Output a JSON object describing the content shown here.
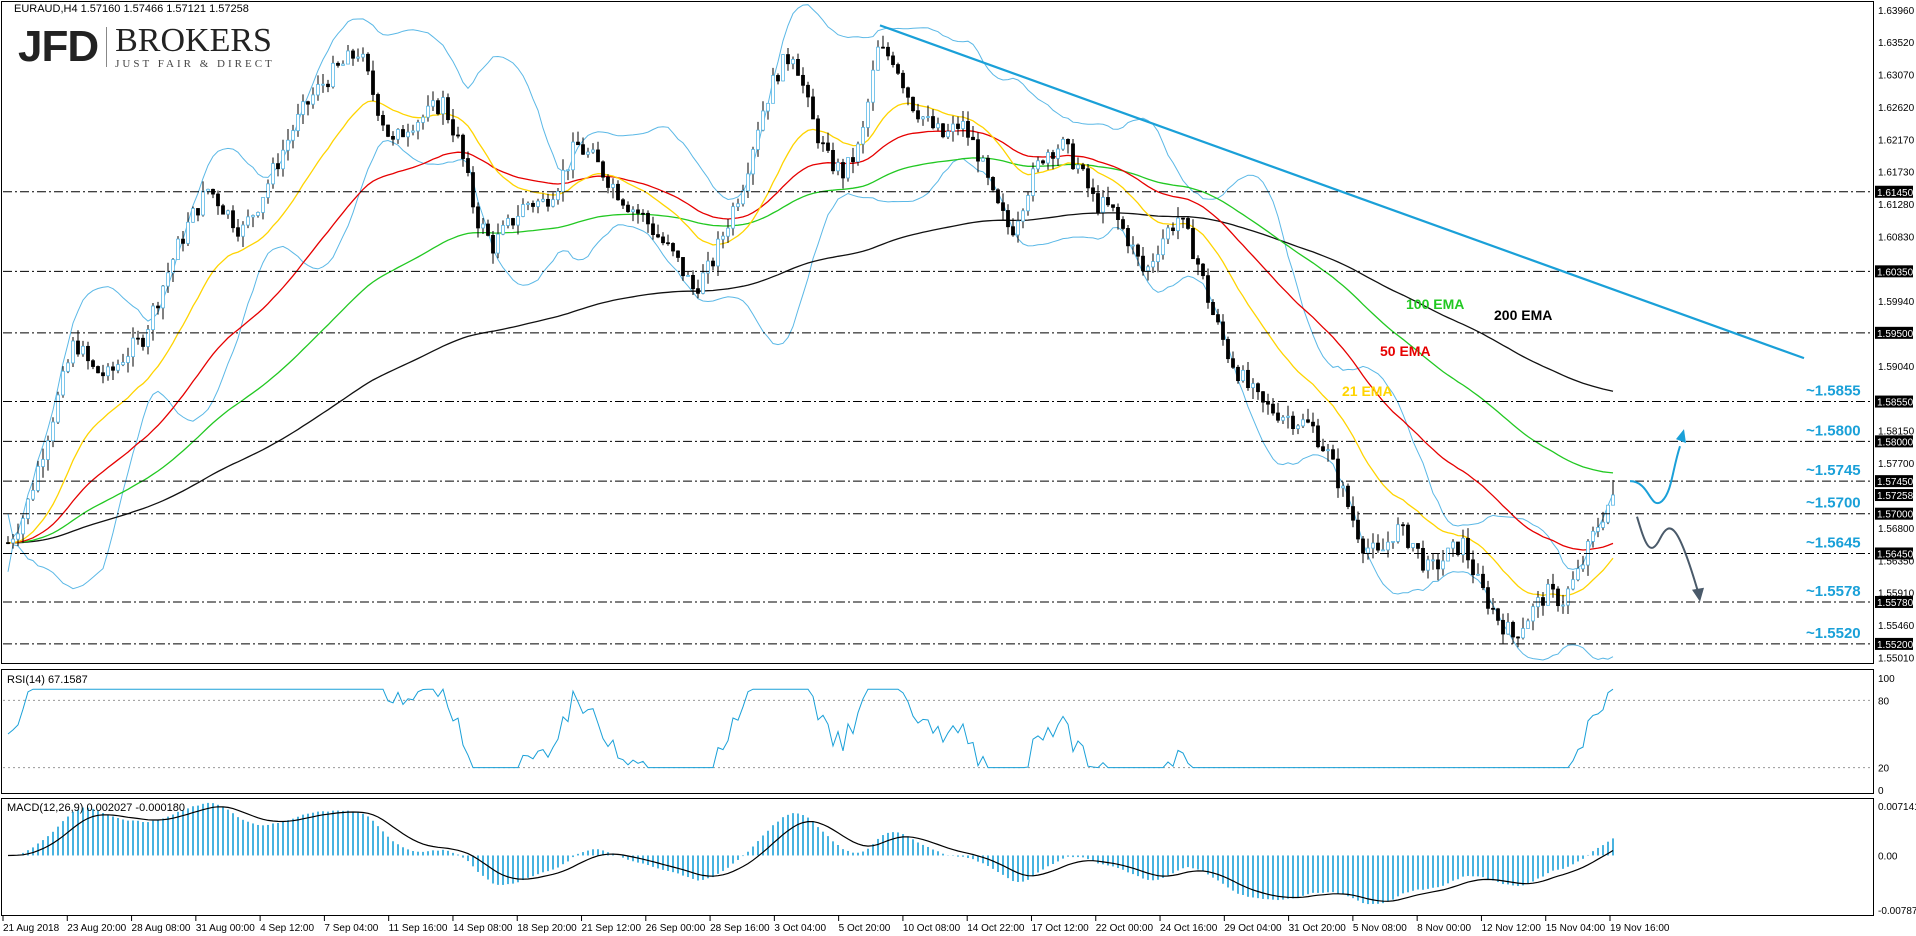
{
  "header": {
    "symbol_line": "EURAUD,H4  1.57160 1.57466 1.57121 1.57258"
  },
  "logo": {
    "mark": "JFD",
    "name": "BROKERS",
    "tagline": "JUST FAIR & DIRECT"
  },
  "panels": {
    "rsi_label": "RSI(14) 67.1587",
    "macd_label": "MACD(12,26,9) 0.002027 -0.000180"
  },
  "colors": {
    "candle": "#000000",
    "bollinger": "#5bb8e6",
    "ema21": "#ffd400",
    "ema50": "#e60000",
    "ema100": "#22c822",
    "ema200": "#111111",
    "trendline": "#1aa0d8",
    "level_text": "#1aa0d8",
    "rsi": "#1aa0d8",
    "macd_hist": "#1aa0d8",
    "macd_signal": "#000000",
    "up_arrow": "#1aa0d8",
    "down_arrow": "#4a5a6a"
  },
  "chart_data": {
    "type": "candlestick",
    "symbol": "EURAUD",
    "timeframe": "H4",
    "ohlc": {
      "open": 1.5716,
      "high": 1.57466,
      "low": 1.57121,
      "close": 1.57258
    },
    "y_range": [
      1.5495,
      1.6399
    ],
    "y_ticks": [
      "1.63960",
      "1.63520",
      "1.63070",
      "1.62620",
      "1.62170",
      "1.61730",
      "1.61280",
      "1.60830",
      "1.59940",
      "1.59040",
      "1.58150",
      "1.57700",
      "1.56800",
      "1.56350",
      "1.55910",
      "1.55460",
      "1.55010"
    ],
    "highlighted_prices": [
      "1.61450",
      "1.60350",
      "1.59500",
      "1.58550",
      "1.58000",
      "1.57450",
      "1.57258",
      "1.57000",
      "1.56450",
      "1.55780",
      "1.55200"
    ],
    "x_ticks": [
      "21 Aug 2018",
      "23 Aug 20:00",
      "28 Aug 08:00",
      "31 Aug 00:00",
      "4 Sep 12:00",
      "7 Sep 04:00",
      "11 Sep 16:00",
      "14 Sep 08:00",
      "18 Sep 20:00",
      "21 Sep 12:00",
      "26 Sep 00:00",
      "28 Sep 16:00",
      "3 Oct 04:00",
      "5 Oct 20:00",
      "10 Oct 08:00",
      "14 Oct 22:00",
      "17 Oct 12:00",
      "22 Oct 00:00",
      "24 Oct 16:00",
      "29 Oct 04:00",
      "31 Oct 20:00",
      "5 Nov 08:00",
      "8 Nov 00:00",
      "12 Nov 12:00",
      "15 Nov 04:00",
      "19 Nov 16:00"
    ],
    "close_path": [
      1.566,
      1.57,
      1.578,
      1.586,
      1.594,
      1.59,
      1.589,
      1.592,
      1.594,
      1.6,
      1.606,
      1.611,
      1.615,
      1.612,
      1.609,
      1.613,
      1.618,
      1.623,
      1.627,
      1.63,
      1.632,
      1.634,
      1.627,
      1.621,
      1.624,
      1.625,
      1.627,
      1.621,
      1.611,
      1.607,
      1.61,
      1.613,
      1.613,
      1.616,
      1.621,
      1.619,
      1.616,
      1.613,
      1.611,
      1.608,
      1.605,
      1.601,
      1.604,
      1.61,
      1.616,
      1.625,
      1.631,
      1.634,
      1.625,
      1.619,
      1.617,
      1.621,
      1.634,
      1.633,
      1.627,
      1.624,
      1.622,
      1.624,
      1.62,
      1.613,
      1.609,
      1.615,
      1.62,
      1.621,
      1.618,
      1.613,
      1.612,
      1.608,
      1.603,
      1.608,
      1.611,
      1.606,
      1.598,
      1.592,
      1.588,
      1.585,
      1.584,
      1.583,
      1.582,
      1.578,
      1.572,
      1.566,
      1.564,
      1.568,
      1.566,
      1.562,
      1.564,
      1.566,
      1.56,
      1.556,
      1.553,
      1.556,
      1.559,
      1.558,
      1.562,
      1.568,
      1.5726
    ],
    "ema_labels": {
      "ema100": "100 EMA",
      "ema200": "200 EMA",
      "ema50": "50 EMA",
      "ema21": "21 EMA"
    },
    "levels": [
      {
        "label": "~1.5855",
        "value": 1.5855
      },
      {
        "label": "~1.5800",
        "value": 1.58
      },
      {
        "label": "~1.5745",
        "value": 1.5745
      },
      {
        "label": "~1.5700",
        "value": 1.57
      },
      {
        "label": "~1.5645",
        "value": 1.5645
      },
      {
        "label": "~1.5578",
        "value": 1.5578
      },
      {
        "label": "~1.5520",
        "value": 1.552
      }
    ],
    "rsi": {
      "value": 67.1587,
      "ticks": [
        "100",
        "80",
        "20",
        "0"
      ]
    },
    "macd": {
      "main": 0.002027,
      "signal": -0.00018,
      "ticks": [
        "0.007141",
        "0.00",
        "-0.007877"
      ]
    }
  }
}
